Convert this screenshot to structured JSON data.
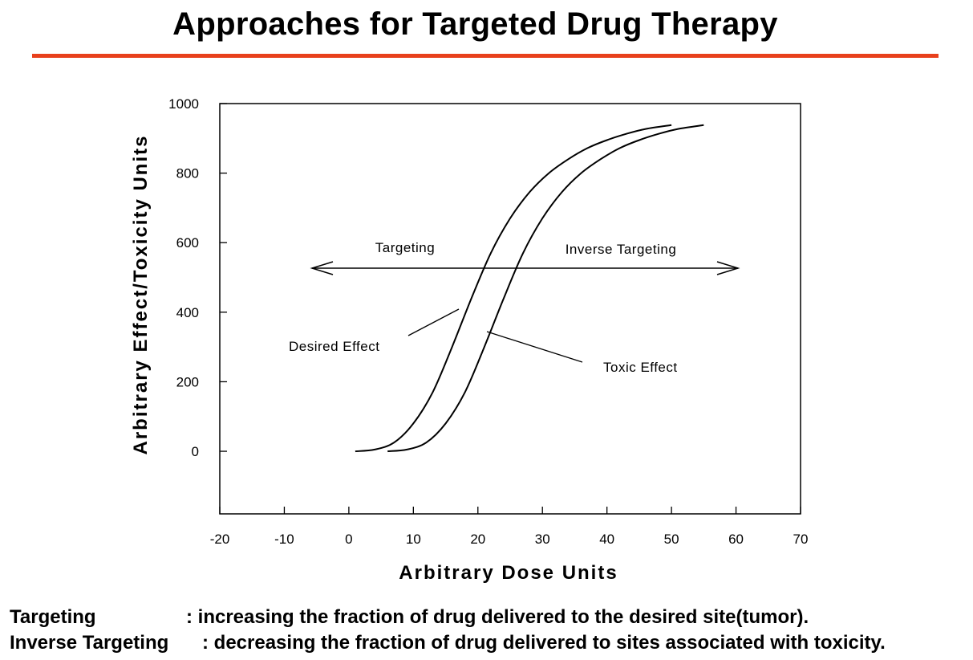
{
  "page": {
    "title": "Approaches for Targeted Drug Therapy",
    "accent_color": "#e8401c"
  },
  "chart_data": {
    "type": "line",
    "title": "",
    "xlabel": "Arbitrary Dose Units",
    "ylabel": "Arbitrary Effect/Toxicity Units",
    "xlim": [
      -20,
      70
    ],
    "ylim": [
      -180,
      1000
    ],
    "x_ticks": [
      -20,
      -10,
      0,
      10,
      20,
      30,
      40,
      50,
      60,
      70
    ],
    "y_ticks": [
      0,
      200,
      400,
      600,
      800,
      1000
    ],
    "grid": false,
    "series": [
      {
        "name": "Desired Effect",
        "color": "#000000",
        "points": [
          [
            1,
            0
          ],
          [
            4,
            5
          ],
          [
            7,
            25
          ],
          [
            10,
            80
          ],
          [
            13,
            170
          ],
          [
            16,
            300
          ],
          [
            19,
            440
          ],
          [
            22,
            570
          ],
          [
            25,
            670
          ],
          [
            28,
            745
          ],
          [
            31,
            800
          ],
          [
            34,
            840
          ],
          [
            37,
            872
          ],
          [
            40,
            895
          ],
          [
            43,
            913
          ],
          [
            46,
            927
          ],
          [
            50,
            938
          ]
        ]
      },
      {
        "name": "Toxic Effect",
        "color": "#000000",
        "points": [
          [
            6,
            0
          ],
          [
            9,
            5
          ],
          [
            12,
            25
          ],
          [
            15,
            80
          ],
          [
            18,
            170
          ],
          [
            21,
            300
          ],
          [
            24,
            440
          ],
          [
            27,
            570
          ],
          [
            30,
            670
          ],
          [
            33,
            745
          ],
          [
            36,
            800
          ],
          [
            39,
            840
          ],
          [
            42,
            872
          ],
          [
            45,
            895
          ],
          [
            48,
            913
          ],
          [
            51,
            927
          ],
          [
            55,
            938
          ]
        ]
      }
    ],
    "annotations": {
      "targeting": "Targeting",
      "inverse_targeting": "Inverse Targeting",
      "desired_effect": "Desired Effect",
      "toxic_effect": "Toxic Effect"
    }
  },
  "definitions": [
    {
      "term": "Targeting",
      "text": ": increasing the fraction of drug delivered to the desired site(tumor)."
    },
    {
      "term": "Inverse Targeting",
      "text": ": decreasing the fraction of drug delivered to sites associated with toxicity."
    }
  ]
}
